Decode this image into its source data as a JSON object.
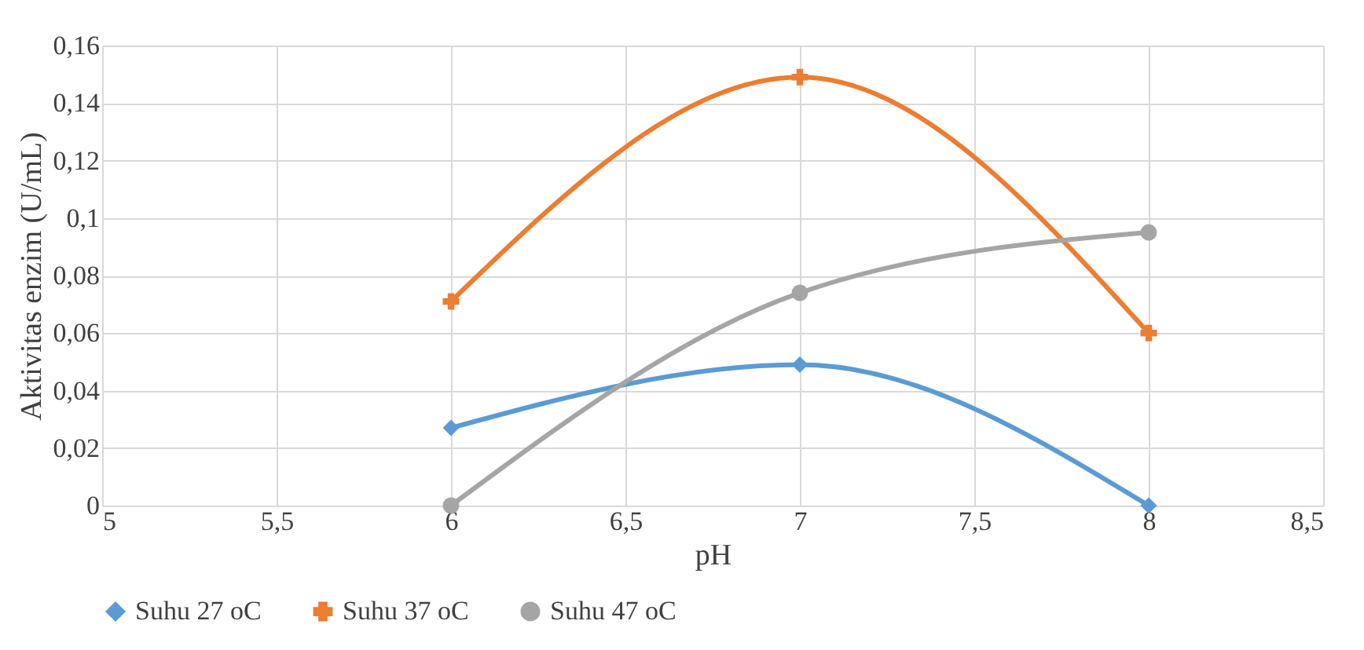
{
  "chart_data": {
    "type": "line",
    "xlabel": "pH",
    "ylabel": "Aktivitas enzim (U/mL)",
    "xlim": [
      5,
      8.5
    ],
    "xticks": [
      5,
      {
        "value": 5.5,
        "label": "5,5"
      },
      6,
      {
        "value": 6.5,
        "label": "6,5"
      },
      7,
      {
        "value": 7.5,
        "label": "7,5"
      },
      8,
      {
        "value": 8.5,
        "label": "8,5"
      }
    ],
    "ylim": [
      0,
      0.16
    ],
    "yticks": [
      0,
      {
        "value": 0.02,
        "label": "0,02"
      },
      {
        "value": 0.04,
        "label": "0,04"
      },
      {
        "value": 0.06,
        "label": "0,06"
      },
      {
        "value": 0.08,
        "label": "0,08"
      },
      {
        "value": 0.1,
        "label": "0,1"
      },
      {
        "value": 0.12,
        "label": "0,12"
      },
      {
        "value": 0.14,
        "label": "0,14"
      },
      {
        "value": 0.16,
        "label": "0,16"
      }
    ],
    "x": [
      6,
      7,
      8
    ],
    "grid": true,
    "legend": "bottom",
    "series": [
      {
        "name": "Suhu 27 oC",
        "color": "#5b9bd5",
        "marker": "diamond",
        "values": [
          0.027,
          0.049,
          0
        ]
      },
      {
        "name": "Suhu 37 oC",
        "color": "#ed7d31",
        "marker": "cross",
        "values": [
          0.071,
          0.149,
          0.06
        ]
      },
      {
        "name": "Suhu 47 oC",
        "color": "#a5a5a5",
        "marker": "circle",
        "values": [
          0,
          0.074,
          0.095
        ]
      }
    ]
  }
}
